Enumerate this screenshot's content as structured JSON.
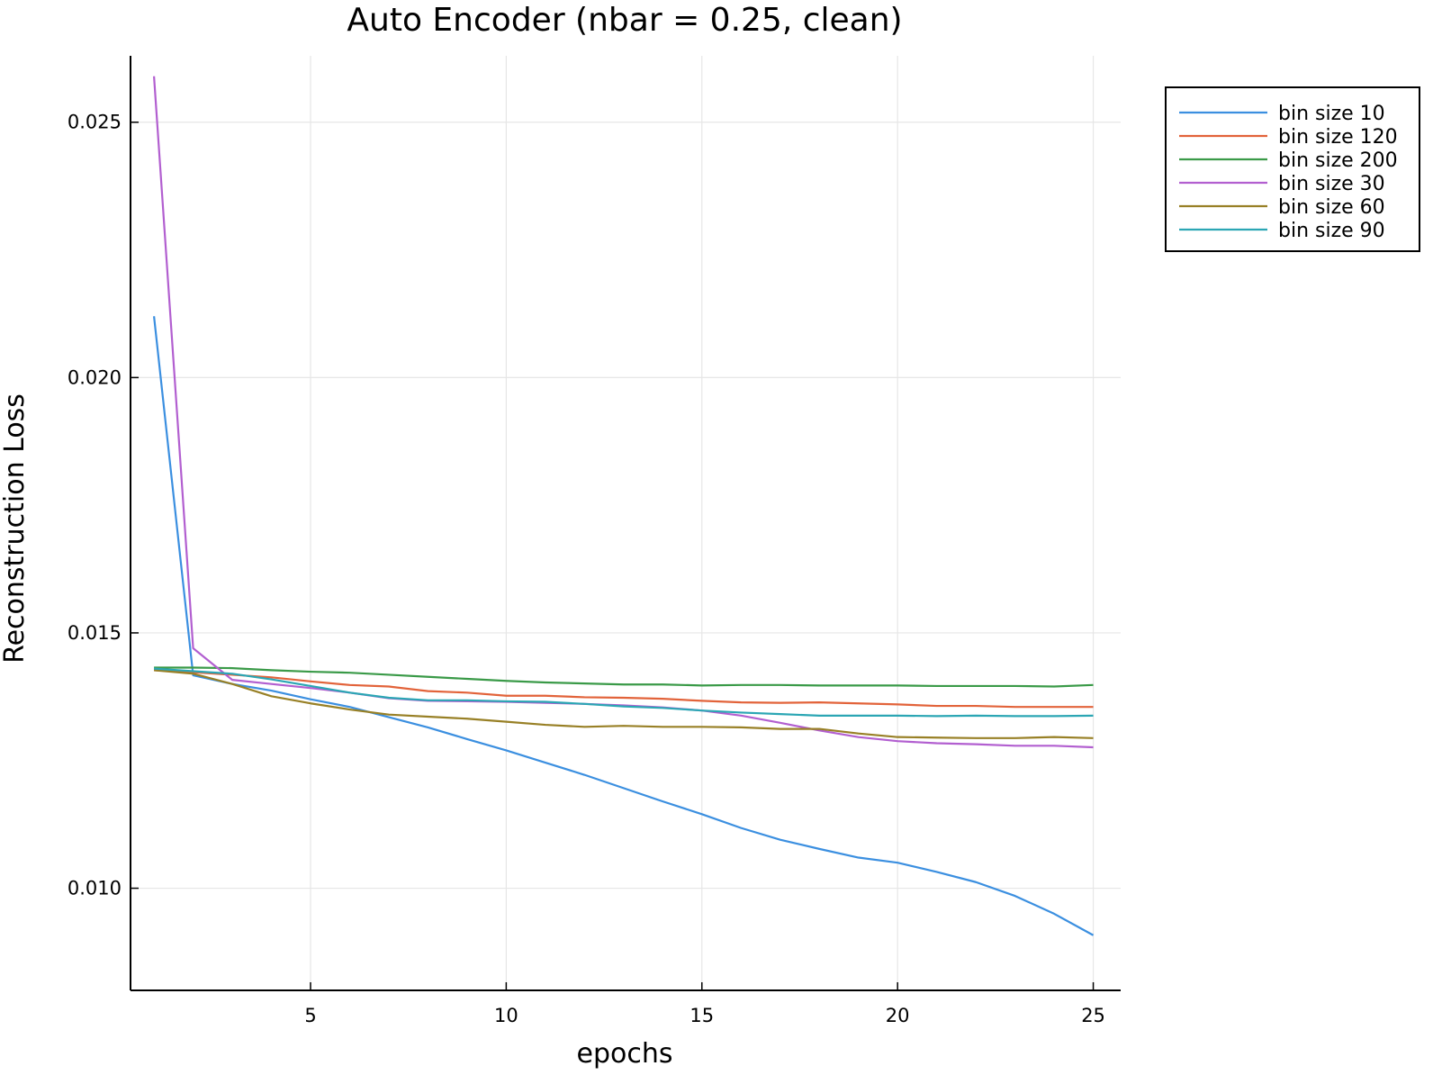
{
  "chart_data": {
    "type": "line",
    "title": "Auto Encoder (nbar = 0.25, clean)",
    "xlabel": "epochs",
    "ylabel": "Reconstruction Loss",
    "xlim": [
      0.4,
      25.7
    ],
    "ylim": [
      0.008,
      0.0263
    ],
    "xticks": [
      5,
      10,
      15,
      20,
      25
    ],
    "xtick_labels": [
      "5",
      "10",
      "15",
      "20",
      "25"
    ],
    "yticks": [
      0.01,
      0.015,
      0.02,
      0.025
    ],
    "ytick_labels": [
      "0.010",
      "0.015",
      "0.020",
      "0.025"
    ],
    "grid": true,
    "legend_position": "top-right",
    "x": [
      1,
      2,
      3,
      4,
      5,
      6,
      7,
      8,
      9,
      10,
      11,
      12,
      13,
      14,
      15,
      16,
      17,
      18,
      19,
      20,
      21,
      22,
      23,
      24,
      25
    ],
    "series": [
      {
        "name": "bin size 10",
        "color": "#3b8fe0",
        "values": [
          0.0212,
          0.01417,
          0.014,
          0.01387,
          0.0137,
          0.01355,
          0.01335,
          0.01315,
          0.01292,
          0.0127,
          0.01246,
          0.01222,
          0.01196,
          0.0117,
          0.01145,
          0.01118,
          0.01095,
          0.01077,
          0.0106,
          0.0105,
          0.01032,
          0.01012,
          0.00985,
          0.0095,
          0.00908
        ]
      },
      {
        "name": "bin size 120",
        "color": "#e2633a",
        "values": [
          0.01427,
          0.01423,
          0.01418,
          0.01413,
          0.01405,
          0.01398,
          0.01395,
          0.01386,
          0.01383,
          0.01377,
          0.01377,
          0.01374,
          0.01373,
          0.01371,
          0.01367,
          0.01364,
          0.01363,
          0.01364,
          0.01362,
          0.0136,
          0.01357,
          0.01357,
          0.01355,
          0.01355,
          0.01355
        ]
      },
      {
        "name": "bin size 200",
        "color": "#3a9a48",
        "values": [
          0.01432,
          0.01432,
          0.01431,
          0.01427,
          0.01424,
          0.01422,
          0.01418,
          0.01414,
          0.0141,
          0.01406,
          0.01403,
          0.01401,
          0.01399,
          0.01399,
          0.01397,
          0.01398,
          0.01398,
          0.01397,
          0.01397,
          0.01397,
          0.01396,
          0.01396,
          0.01396,
          0.01395,
          0.01398
        ]
      },
      {
        "name": "bin size 30",
        "color": "#b25fd0",
        "values": [
          0.0259,
          0.0147,
          0.01408,
          0.014,
          0.01392,
          0.01383,
          0.01372,
          0.01367,
          0.01366,
          0.01365,
          0.01363,
          0.01361,
          0.01358,
          0.01354,
          0.01348,
          0.01338,
          0.01324,
          0.01309,
          0.01296,
          0.01288,
          0.01284,
          0.01282,
          0.01279,
          0.01279,
          0.01276
        ]
      },
      {
        "name": "bin size 60",
        "color": "#988026",
        "values": [
          0.01427,
          0.0142,
          0.014,
          0.01376,
          0.01362,
          0.0135,
          0.0134,
          0.01336,
          0.01332,
          0.01326,
          0.0132,
          0.01316,
          0.01318,
          0.01316,
          0.01316,
          0.01315,
          0.01312,
          0.01312,
          0.01303,
          0.01296,
          0.01295,
          0.01294,
          0.01294,
          0.01296,
          0.01294
        ]
      },
      {
        "name": "bin size 90",
        "color": "#2ba6b4",
        "values": [
          0.0143,
          0.01425,
          0.0142,
          0.01409,
          0.01396,
          0.01383,
          0.01373,
          0.01368,
          0.01368,
          0.01366,
          0.01365,
          0.01361,
          0.01356,
          0.01353,
          0.01348,
          0.01344,
          0.01341,
          0.01338,
          0.01338,
          0.01338,
          0.01337,
          0.01338,
          0.01337,
          0.01337,
          0.01338
        ]
      }
    ]
  }
}
